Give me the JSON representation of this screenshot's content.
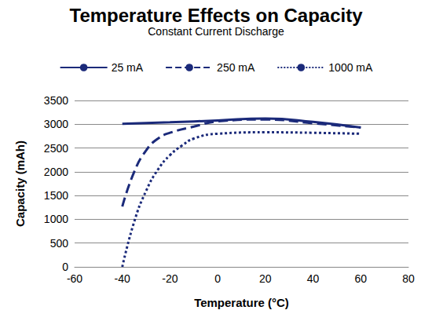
{
  "chart_data": {
    "type": "line",
    "title": "Temperature Effects on Capacity",
    "subtitle": "Constant Current Discharge",
    "x_label": "Temperature (°C)",
    "y_label": "Capacity (mAh)",
    "xlim": [
      -60,
      80
    ],
    "xticks": [
      -60,
      -40,
      -20,
      0,
      20,
      40,
      60,
      80
    ],
    "ylim": [
      0,
      3500
    ],
    "yticks": [
      0,
      500,
      1000,
      1500,
      2000,
      2500,
      3000,
      3500
    ],
    "grid": true,
    "legend": "top",
    "marker": "none",
    "series": [
      {
        "name": "25 mA",
        "color": "#1b2a7a",
        "line_style": "solid",
        "x": [
          -40,
          -20,
          0,
          20,
          40,
          60
        ],
        "values": [
          3010,
          3040,
          3080,
          3120,
          3050,
          2930
        ]
      },
      {
        "name": "250 mA",
        "color": "#1b2a7a",
        "line_style": "dashed",
        "x": [
          -40,
          -35,
          -30,
          -25,
          -20,
          -10,
          0,
          20,
          40,
          60
        ],
        "values": [
          1270,
          2000,
          2450,
          2700,
          2820,
          2950,
          3060,
          3100,
          3020,
          2930
        ]
      },
      {
        "name": "1000 mA",
        "color": "#1b2a7a",
        "line_style": "dotted",
        "x": [
          -40,
          -35,
          -30,
          -25,
          -20,
          -15,
          -10,
          0,
          20,
          40,
          60
        ],
        "values": [
          0,
          950,
          1600,
          2050,
          2350,
          2550,
          2700,
          2800,
          2830,
          2820,
          2800
        ]
      }
    ]
  }
}
